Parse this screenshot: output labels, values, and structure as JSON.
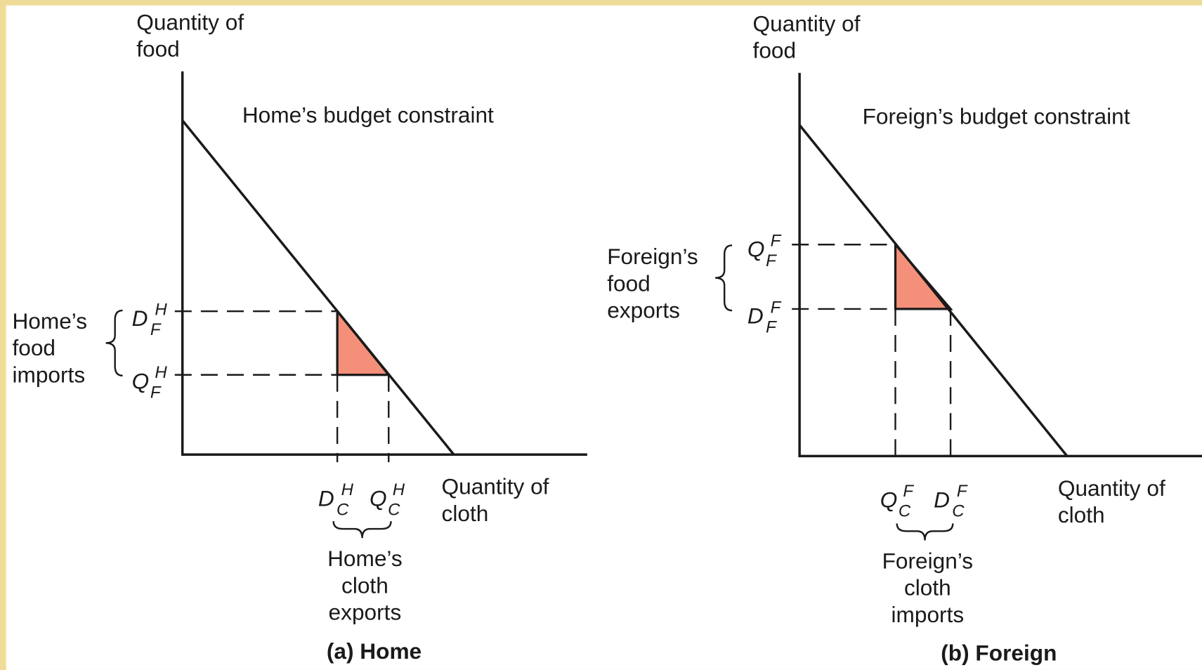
{
  "panels": [
    {
      "caption": "(a) Home",
      "curve_label": "Home’s budget constraint",
      "y_axis_label": [
        "Quantity of",
        "food"
      ],
      "x_axis_label": [
        "Quantity of",
        "cloth"
      ],
      "y_points": [
        {
          "base": "D",
          "sub": "F",
          "sup": "H"
        },
        {
          "base": "Q",
          "sub": "F",
          "sup": "H"
        }
      ],
      "x_points": [
        {
          "base": "D",
          "sub": "C",
          "sup": "H"
        },
        {
          "base": "Q",
          "sub": "C",
          "sup": "H"
        }
      ],
      "y_brace_label": [
        "Home’s",
        "food",
        "imports"
      ],
      "x_brace_label": [
        "Home’s",
        "cloth",
        "exports"
      ]
    },
    {
      "caption": "(b) Foreign",
      "curve_label": "Foreign’s budget constraint",
      "y_axis_label": [
        "Quantity of",
        "food"
      ],
      "x_axis_label": [
        "Quantity of",
        "cloth"
      ],
      "y_points": [
        {
          "base": "Q",
          "sub": "F",
          "sup": "F"
        },
        {
          "base": "D",
          "sub": "F",
          "sup": "F"
        }
      ],
      "x_points": [
        {
          "base": "Q",
          "sub": "C",
          "sup": "F"
        },
        {
          "base": "D",
          "sub": "C",
          "sup": "F"
        }
      ],
      "y_brace_label": [
        "Foreign’s",
        "food",
        "exports"
      ],
      "x_brace_label": [
        "Foreign’s",
        "cloth",
        "imports"
      ]
    }
  ]
}
